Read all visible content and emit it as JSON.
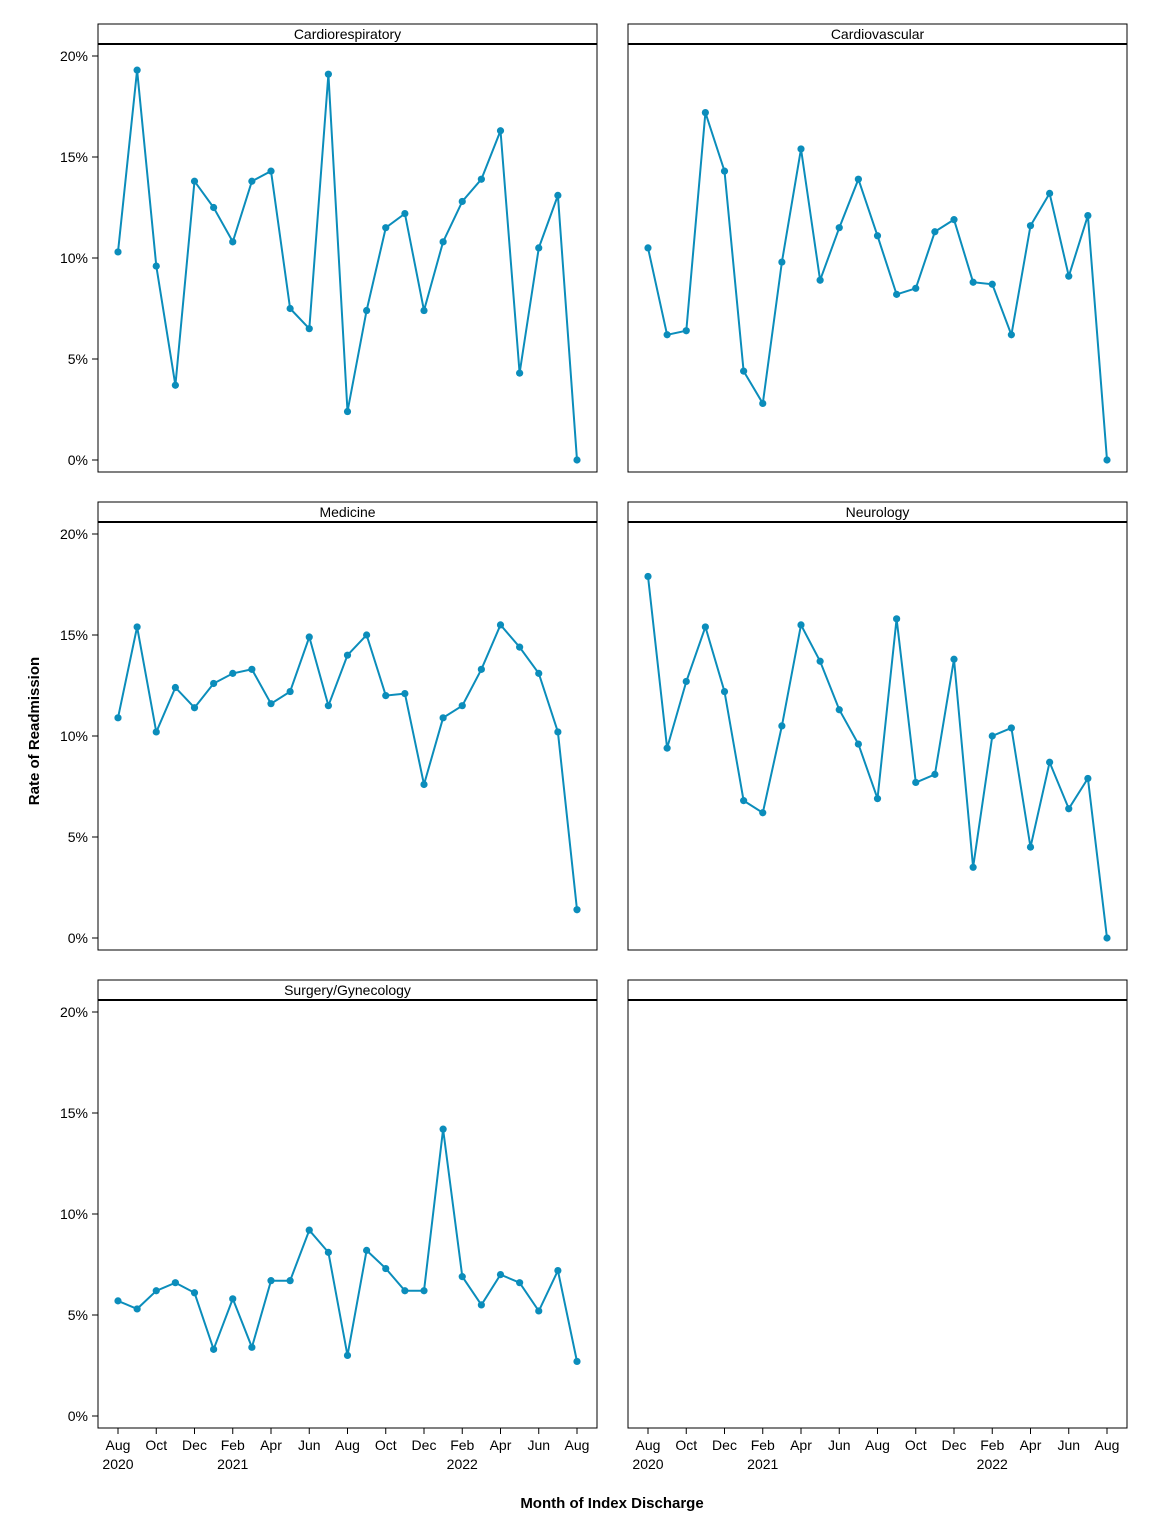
{
  "chart_data": {
    "type": "line",
    "ylabel": "Rate of Readmission",
    "xlabel": "Month of Index Discharge",
    "ylim": [
      0,
      20
    ],
    "y_ticks": [
      0,
      5,
      10,
      15,
      20
    ],
    "y_tick_suffix": "%",
    "x": [
      "2020-08",
      "2020-09",
      "2020-10",
      "2020-11",
      "2020-12",
      "2021-01",
      "2021-02",
      "2021-03",
      "2021-04",
      "2021-05",
      "2021-06",
      "2021-07",
      "2021-08",
      "2021-09",
      "2021-10",
      "2021-11",
      "2021-12",
      "2022-01",
      "2022-02",
      "2022-03",
      "2022-04",
      "2022-05",
      "2022-06",
      "2022-07",
      "2022-08"
    ],
    "x_tick_labels": [
      "Aug\n2020",
      "Oct",
      "Dec",
      "Feb\n2021",
      "Apr",
      "Jun",
      "Aug",
      "Oct",
      "Dec",
      "Feb\n2022",
      "Apr",
      "Jun",
      "Aug"
    ],
    "line_color": "#0B8DBB",
    "grid": false,
    "layout": "3 rows x 2 columns facet grid",
    "panels": [
      {
        "name": "Cardiorespiratory",
        "values": [
          10.3,
          19.3,
          9.6,
          3.7,
          13.8,
          12.5,
          10.8,
          13.8,
          14.3,
          7.5,
          6.5,
          19.1,
          2.4,
          7.4,
          11.5,
          12.2,
          7.4,
          10.8,
          12.8,
          13.9,
          16.3,
          4.3,
          10.5,
          13.1,
          0.0
        ]
      },
      {
        "name": "Cardiovascular",
        "values": [
          10.5,
          6.2,
          6.4,
          17.2,
          14.3,
          4.4,
          2.8,
          9.8,
          15.4,
          8.9,
          11.5,
          13.9,
          11.1,
          8.2,
          8.5,
          11.3,
          11.9,
          8.8,
          8.7,
          6.2,
          11.6,
          13.2,
          9.1,
          12.1,
          0.0
        ]
      },
      {
        "name": "Medicine",
        "values": [
          10.9,
          15.4,
          10.2,
          12.4,
          11.4,
          12.6,
          13.1,
          13.3,
          11.6,
          12.2,
          14.9,
          11.5,
          14.0,
          15.0,
          12.0,
          12.1,
          7.6,
          10.9,
          11.5,
          13.3,
          15.5,
          14.4,
          13.1,
          10.2,
          1.4
        ]
      },
      {
        "name": "Neurology",
        "values": [
          17.9,
          9.4,
          12.7,
          15.4,
          12.2,
          6.8,
          6.2,
          10.5,
          15.5,
          13.7,
          11.3,
          9.6,
          6.9,
          15.8,
          7.7,
          8.1,
          13.8,
          3.5,
          10.0,
          10.4,
          4.5,
          8.7,
          6.4,
          7.9,
          0.0
        ]
      },
      {
        "name": "Surgery/Gynecology",
        "values": [
          5.7,
          5.3,
          6.2,
          6.6,
          6.1,
          3.3,
          5.8,
          3.4,
          6.7,
          6.7,
          9.2,
          8.1,
          3.0,
          8.2,
          7.3,
          6.2,
          6.2,
          14.2,
          6.9,
          5.5,
          7.0,
          6.6,
          5.2,
          7.2,
          2.7
        ]
      },
      {
        "name": "",
        "values": []
      }
    ]
  }
}
